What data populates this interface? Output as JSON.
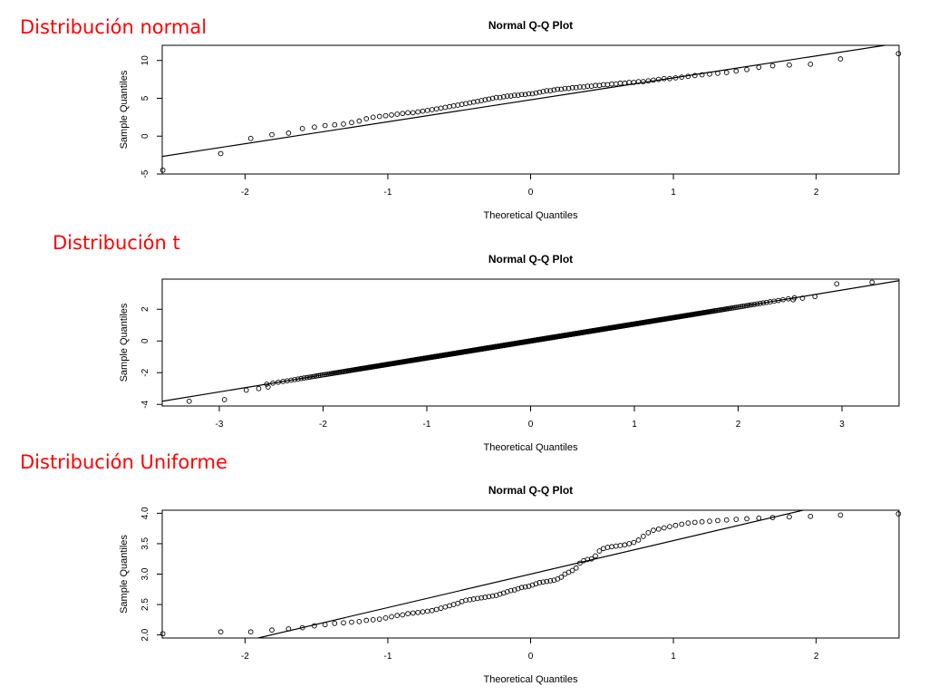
{
  "sections": [
    {
      "label": "Distribución normal"
    },
    {
      "label": "Distribución t"
    },
    {
      "label": "Distribución Uniforme"
    }
  ],
  "chart_data": [
    {
      "type": "scatter",
      "title": "Normal Q-Q Plot",
      "xlabel": "Theoretical Quantiles",
      "ylabel": "Sample Quantiles",
      "xlim": [
        -2.58,
        2.58
      ],
      "ylim": [
        -5,
        12
      ],
      "xticks": [
        -2,
        -1,
        0,
        1,
        2
      ],
      "yticks": [
        -5,
        0,
        5,
        10
      ],
      "reference_line": {
        "slope": 2.9,
        "intercept": 4.8
      },
      "series": [
        {
          "n": 100,
          "values": [
            -4.5,
            -2.3,
            -0.3,
            0.2,
            0.4,
            1.0,
            1.2,
            1.4,
            1.5,
            1.6,
            1.8,
            2.0,
            2.3,
            2.5,
            2.6,
            2.7,
            2.8,
            2.9,
            3.0,
            3.1,
            3.1,
            3.2,
            3.3,
            3.4,
            3.5,
            3.6,
            3.7,
            3.8,
            3.9,
            4.0,
            4.1,
            4.2,
            4.3,
            4.4,
            4.5,
            4.6,
            4.7,
            4.8,
            4.9,
            5.0,
            5.1,
            5.1,
            5.2,
            5.3,
            5.3,
            5.4,
            5.4,
            5.5,
            5.5,
            5.6,
            5.6,
            5.7,
            5.8,
            5.9,
            6.0,
            6.0,
            6.1,
            6.2,
            6.2,
            6.3,
            6.3,
            6.4,
            6.4,
            6.5,
            6.5,
            6.6,
            6.6,
            6.7,
            6.7,
            6.8,
            6.8,
            6.9,
            6.9,
            7.0,
            7.0,
            7.1,
            7.1,
            7.2,
            7.2,
            7.3,
            7.4,
            7.5,
            7.6,
            7.6,
            7.7,
            7.8,
            7.9,
            8.0,
            8.1,
            8.2,
            8.3,
            8.4,
            8.6,
            8.8,
            9.1,
            9.3,
            9.4,
            9.5,
            10.2,
            10.9
          ]
        }
      ]
    },
    {
      "type": "scatter",
      "title": "Normal Q-Q Plot",
      "xlabel": "Theoretical Quantiles",
      "ylabel": "Sample Quantiles",
      "xlim": [
        -3.55,
        3.55
      ],
      "ylim": [
        -4.1,
        3.9
      ],
      "xticks": [
        -3,
        -2,
        -1,
        0,
        1,
        2,
        3
      ],
      "yticks": [
        -4,
        -2,
        0,
        2
      ],
      "reference_line": {
        "slope": 1.07,
        "intercept": 0.0
      },
      "series": [
        {
          "n": 1000,
          "shape": "linear",
          "scale": 1.07,
          "intercept": 0.0,
          "tails": [
            [
              -3.29,
              -3.8
            ],
            [
              -2.95,
              -3.7
            ],
            [
              -2.74,
              -3.1
            ],
            [
              -2.62,
              -3.0
            ],
            [
              -2.53,
              -2.9
            ],
            [
              2.53,
              2.6
            ],
            [
              2.62,
              2.7
            ],
            [
              2.74,
              2.8
            ],
            [
              2.95,
              3.6
            ],
            [
              3.29,
              3.7
            ]
          ]
        }
      ]
    },
    {
      "type": "scatter",
      "title": "Normal Q-Q Plot",
      "xlabel": "Theoretical Quantiles",
      "ylabel": "Sample Quantiles",
      "xlim": [
        -2.58,
        2.58
      ],
      "ylim": [
        1.95,
        4.05
      ],
      "xticks": [
        -2,
        -1,
        0,
        1,
        2
      ],
      "yticks": [
        2.0,
        2.5,
        3.0,
        3.5,
        4.0
      ],
      "reference_line": {
        "slope": 0.55,
        "intercept": 3.0
      },
      "series": [
        {
          "n": 100,
          "values": [
            2.02,
            2.05,
            2.05,
            2.08,
            2.1,
            2.12,
            2.15,
            2.17,
            2.19,
            2.2,
            2.21,
            2.22,
            2.24,
            2.25,
            2.26,
            2.28,
            2.3,
            2.32,
            2.33,
            2.35,
            2.36,
            2.37,
            2.38,
            2.39,
            2.4,
            2.42,
            2.44,
            2.46,
            2.48,
            2.5,
            2.52,
            2.55,
            2.57,
            2.58,
            2.59,
            2.6,
            2.61,
            2.62,
            2.63,
            2.64,
            2.65,
            2.67,
            2.69,
            2.71,
            2.73,
            2.74,
            2.76,
            2.78,
            2.79,
            2.8,
            2.82,
            2.84,
            2.86,
            2.87,
            2.88,
            2.89,
            2.9,
            2.92,
            2.95,
            3.0,
            3.03,
            3.06,
            3.1,
            3.18,
            3.22,
            3.24,
            3.25,
            3.3,
            3.38,
            3.42,
            3.44,
            3.45,
            3.46,
            3.47,
            3.48,
            3.5,
            3.52,
            3.56,
            3.62,
            3.68,
            3.72,
            3.74,
            3.76,
            3.78,
            3.8,
            3.82,
            3.84,
            3.85,
            3.86,
            3.87,
            3.88,
            3.89,
            3.9,
            3.91,
            3.92,
            3.93,
            3.94,
            3.95,
            3.97,
            3.99
          ]
        }
      ]
    }
  ]
}
